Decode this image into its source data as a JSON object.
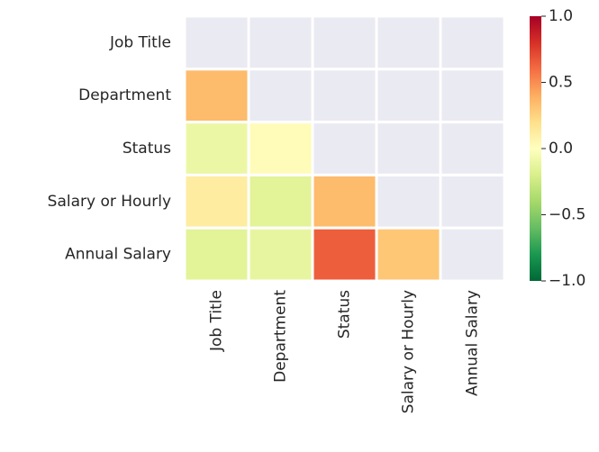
{
  "chart_data": {
    "type": "heatmap",
    "x": [
      "Job Title",
      "Department",
      "Status",
      "Salary or Hourly",
      "Annual Salary"
    ],
    "y": [
      "Job Title",
      "Department",
      "Status",
      "Salary or Hourly",
      "Annual Salary"
    ],
    "values": [
      [
        null,
        null,
        null,
        null,
        null
      ],
      [
        0.35,
        null,
        null,
        null,
        null
      ],
      [
        -0.1,
        0.02,
        null,
        null,
        null
      ],
      [
        0.12,
        -0.15,
        0.35,
        null,
        null
      ],
      [
        -0.15,
        -0.12,
        0.65,
        0.3,
        null
      ]
    ],
    "colormap": [
      "#006837",
      "#1a9850",
      "#66bd63",
      "#a6d96a",
      "#d9ef8b",
      "#ffffbf",
      "#fee08b",
      "#fdae61",
      "#f46d43",
      "#d73027",
      "#a50026"
    ],
    "mask_color": "#eaeaf2",
    "clim": [
      -1,
      1
    ],
    "cticks": [
      {
        "value": 1,
        "label": "1.0"
      },
      {
        "value": 0.5,
        "label": "0.5"
      },
      {
        "value": 0,
        "label": "0.0"
      },
      {
        "value": -0.5,
        "label": "−0.5"
      },
      {
        "value": -1,
        "label": "−1.0"
      }
    ]
  }
}
